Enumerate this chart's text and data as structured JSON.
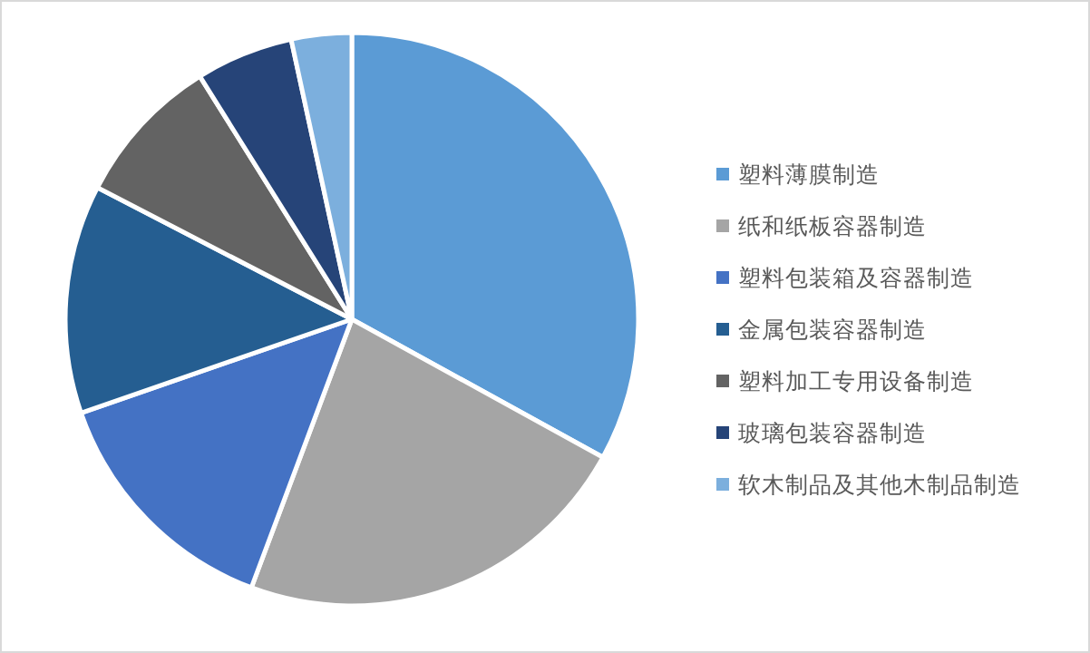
{
  "chart_data": {
    "type": "pie",
    "categories": [
      "塑料薄膜制造",
      "纸和纸板容器制造",
      "塑料包装箱及容器制造",
      "金属包装容器制造",
      "塑料加工专用设备制造",
      "玻璃包装容器制造",
      "软木制品及其他木制品制造"
    ],
    "values": [
      33,
      22.7,
      14,
      12.9,
      8.5,
      5.5,
      3.4
    ],
    "colors": [
      "#5b9bd5",
      "#a5a5a5",
      "#4472c4",
      "#255e91",
      "#636363",
      "#264478",
      "#7cafdd"
    ],
    "legend": "right"
  }
}
